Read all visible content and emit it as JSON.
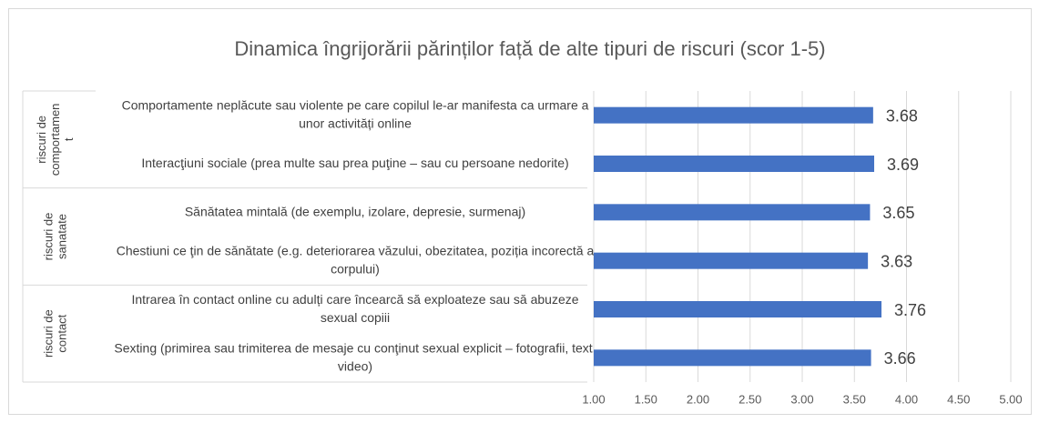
{
  "chart_data": {
    "type": "bar",
    "title": "Dinamica îngrijorării părinților față de alte tipuri de riscuri (scor 1-5)",
    "groups": [
      {
        "name": "riscuri de comportament",
        "categories": [
          "Comportamente neplăcute sau violente pe care copilul le-ar manifesta ca urmare a unor activități online",
          "Interacţiuni sociale (prea multe sau prea puţine – sau cu persoane nedorite)"
        ],
        "values": [
          3.68,
          3.69
        ]
      },
      {
        "name": "riscuri de sanatate",
        "categories": [
          "Sănătatea mintală (de exemplu, izolare,  depresie, surmenaj)",
          "Chestiuni ce ţin de sănătate (e.g. deteriorarea văzului, obezitatea, poziția incorectă a corpului)"
        ],
        "values": [
          3.65,
          3.63
        ]
      },
      {
        "name": "riscuri de contact",
        "categories": [
          "Intrarea în contact online cu adulți care încearcă să exploateze sau să abuzeze sexual copiii",
          "Sexting (primirea sau trimiterea de mesaje cu conţinut sexual explicit – fotografii, text, video)"
        ],
        "values": [
          3.76,
          3.66
        ]
      }
    ],
    "color": "#4472c4",
    "xlim": [
      1,
      5
    ],
    "xticks": [
      {
        "value": 1,
        "label": "1.00"
      },
      {
        "value": 1.5,
        "label": "1.50"
      },
      {
        "value": 2,
        "label": "2.00"
      },
      {
        "value": 2.5,
        "label": "2.50"
      },
      {
        "value": 3,
        "label": "3.00"
      },
      {
        "value": 3.5,
        "label": "3.50"
      },
      {
        "value": 4,
        "label": "4.00"
      },
      {
        "value": 4.5,
        "label": "4.50"
      },
      {
        "value": 5,
        "label": "5.00"
      }
    ],
    "grid": true
  }
}
